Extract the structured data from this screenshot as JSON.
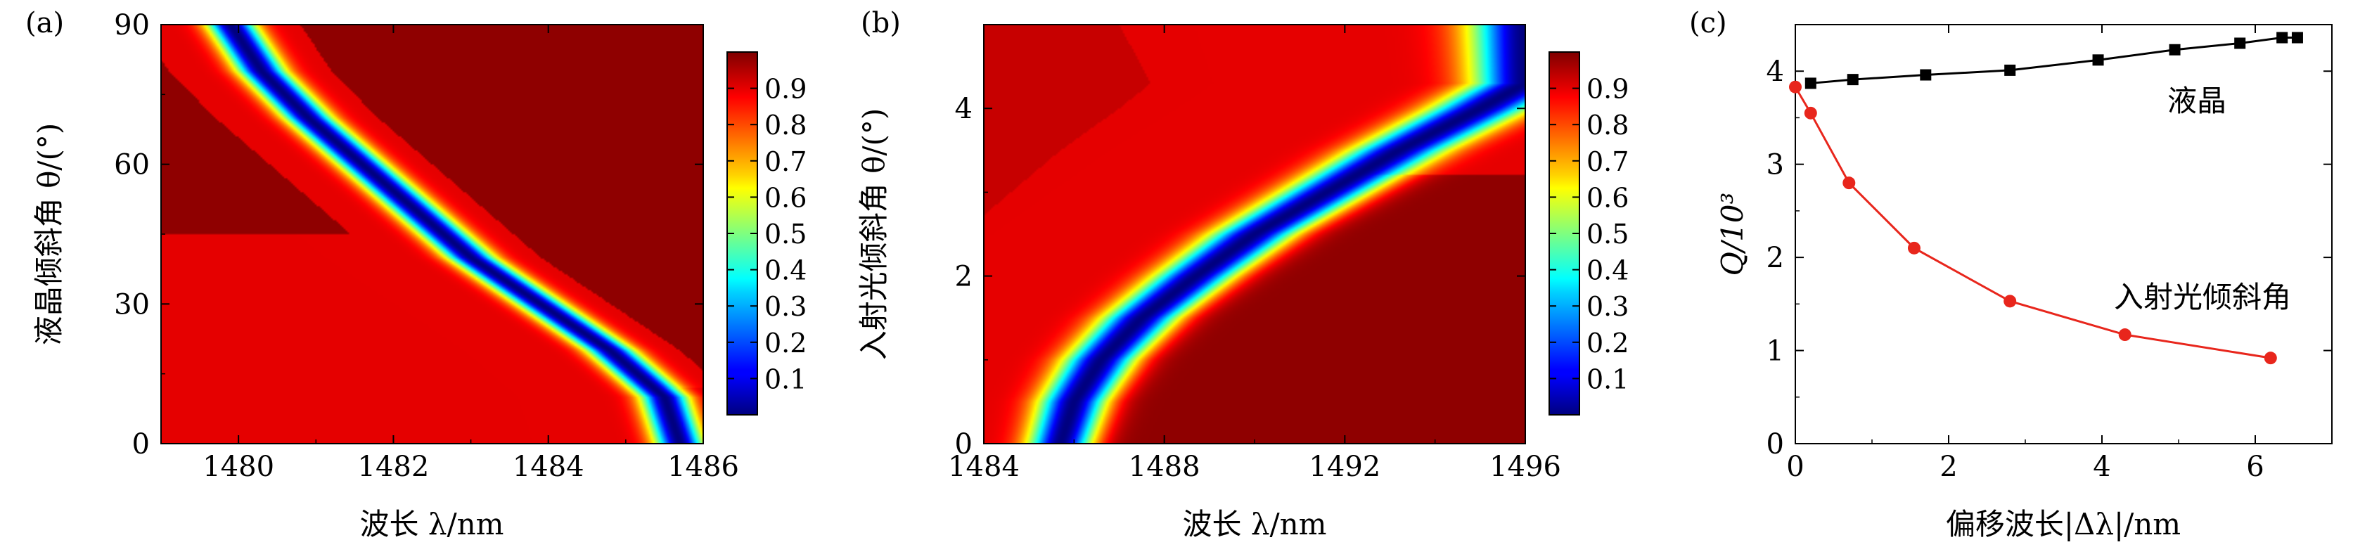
{
  "figure": {
    "panels": [
      {
        "panel_label": "(a)",
        "xlabel": "波长 λ/nm",
        "ylabel": "液晶倾斜角 θ/(°)",
        "xticks": [
          "1480",
          "1482",
          "1484",
          "1486"
        ],
        "yticks": [
          "0",
          "30",
          "60",
          "90"
        ],
        "colorbar_ticks": [
          "0.1",
          "0.2",
          "0.3",
          "0.4",
          "0.5",
          "0.6",
          "0.7",
          "0.8",
          "0.9"
        ]
      },
      {
        "panel_label": "(b)",
        "xlabel": "波长 λ/nm",
        "ylabel": "入射光倾斜角 θ/(°)",
        "xticks": [
          "1484",
          "1488",
          "1492",
          "1496"
        ],
        "yticks": [
          "0",
          "2",
          "4"
        ],
        "colorbar_ticks": [
          "0.1",
          "0.2",
          "0.3",
          "0.4",
          "0.5",
          "0.6",
          "0.7",
          "0.8",
          "0.9"
        ]
      },
      {
        "panel_label": "(c)",
        "xlabel": "偏移波长|Δλ|/nm",
        "ylabel": "Q/10³",
        "xticks": [
          "0",
          "2",
          "4",
          "6"
        ],
        "yticks": [
          "0",
          "1",
          "2",
          "3",
          "4"
        ],
        "annotations": [
          "液晶",
          "入射光倾斜角"
        ]
      }
    ]
  },
  "chart_data": [
    {
      "type": "heatmap",
      "xlabel": "波长 λ/nm",
      "ylabel": "液晶倾斜角 θ/(°)",
      "xlim": [
        1479,
        1486
      ],
      "ylim": [
        0,
        90
      ],
      "colorbar": {
        "min": 0,
        "max": 1,
        "colormap": "jet",
        "ticks": [
          0.1,
          0.2,
          0.3,
          0.4,
          0.5,
          0.6,
          0.7,
          0.8,
          0.9
        ]
      },
      "resonance_curve": {
        "theta": [
          0,
          10,
          20,
          30,
          40,
          50,
          60,
          70,
          80,
          90
        ],
        "wavelength": [
          1485.7,
          1485.5,
          1484.8,
          1483.9,
          1483.0,
          1482.3,
          1481.6,
          1480.9,
          1480.3,
          1479.9
        ]
      }
    },
    {
      "type": "heatmap",
      "xlabel": "波长 λ/nm",
      "ylabel": "入射光倾斜角 θ/(°)",
      "xlim": [
        1484,
        1496
      ],
      "ylim": [
        0,
        5
      ],
      "colorbar": {
        "min": 0,
        "max": 1,
        "colormap": "jet",
        "ticks": [
          0.1,
          0.2,
          0.3,
          0.4,
          0.5,
          0.6,
          0.7,
          0.8,
          0.9
        ]
      },
      "resonance_curve": {
        "theta": [
          0,
          0.5,
          1,
          1.5,
          2,
          2.5,
          3,
          3.5,
          4,
          4.3
        ],
        "wavelength": [
          1485.7,
          1486.0,
          1486.6,
          1487.5,
          1488.7,
          1490.0,
          1491.6,
          1493.2,
          1495.0,
          1496.0
        ]
      }
    },
    {
      "type": "line",
      "xlabel": "偏移波长|Δλ|/nm",
      "ylabel": "Q/10³",
      "xlim": [
        0,
        7
      ],
      "ylim": [
        0,
        4.5
      ],
      "series": [
        {
          "name": "液晶",
          "color": "#000000",
          "marker": "square",
          "x": [
            0.2,
            0.75,
            1.7,
            2.8,
            3.95,
            4.95,
            5.8,
            6.35,
            6.55
          ],
          "y": [
            3.87,
            3.91,
            3.96,
            4.01,
            4.12,
            4.23,
            4.3,
            4.36,
            4.36
          ]
        },
        {
          "name": "入射光倾斜角",
          "color": "#e8261c",
          "marker": "circle",
          "x": [
            0,
            0.2,
            0.7,
            1.55,
            2.8,
            4.3,
            6.2
          ],
          "y": [
            3.83,
            3.55,
            2.8,
            2.1,
            1.53,
            1.17,
            0.92
          ]
        }
      ]
    }
  ]
}
